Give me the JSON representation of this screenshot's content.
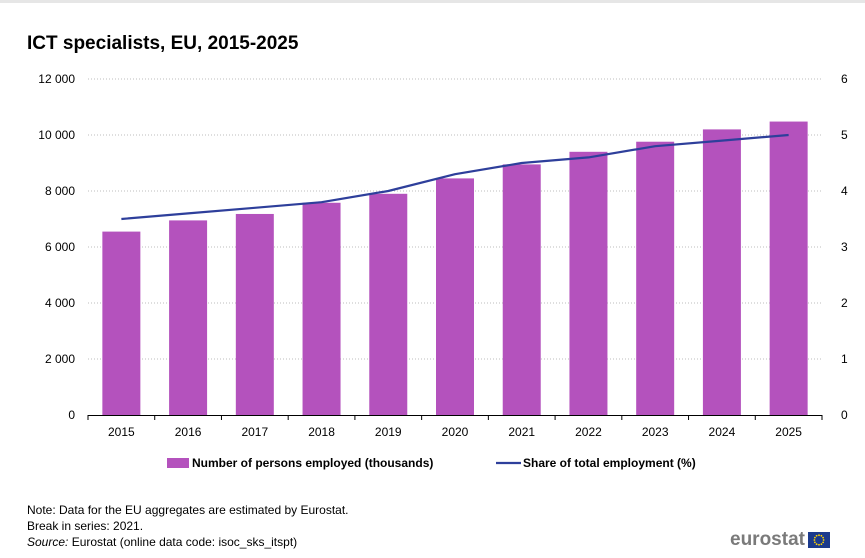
{
  "title": "ICT specialists, EU, 2015-2025",
  "notes": {
    "line1": "Note: Data for the EU aggregates are estimated by Eurostat.",
    "line2": "Break in series: 2021.",
    "source_label": "Source:",
    "source_text": " Eurostat (online data code: isoc_sks_itspt)"
  },
  "logo_text": "eurostat",
  "colors": {
    "bar": "#b452bd",
    "line": "#2e3f9b",
    "grid": "#bdbdbd",
    "axis": "#000000"
  },
  "chart_data": {
    "type": "bar",
    "categories": [
      "2015",
      "2016",
      "2017",
      "2018",
      "2019",
      "2020",
      "2021",
      "2022",
      "2023",
      "2024",
      "2025"
    ],
    "series": [
      {
        "name": "Number of persons employed (thousands)",
        "type": "bar",
        "axis": "left",
        "values": [
          6550,
          6950,
          7180,
          7580,
          7900,
          8450,
          8950,
          9400,
          9760,
          10200,
          10480
        ]
      },
      {
        "name": "Share of total employment (%)",
        "type": "line",
        "axis": "right",
        "values": [
          3.5,
          3.6,
          3.7,
          3.8,
          4.0,
          4.3,
          4.5,
          4.6,
          4.8,
          4.9,
          5.0
        ]
      }
    ],
    "ylim_left": [
      0,
      12000
    ],
    "yticks_left": [
      "0",
      "2 000",
      "4 000",
      "6 000",
      "8 000",
      "10 000",
      "12 000"
    ],
    "ylim_right": [
      0,
      6
    ],
    "yticks_right": [
      "0",
      "1",
      "2",
      "3",
      "4",
      "5",
      "6"
    ],
    "grid": true,
    "legend_position": "bottom"
  }
}
